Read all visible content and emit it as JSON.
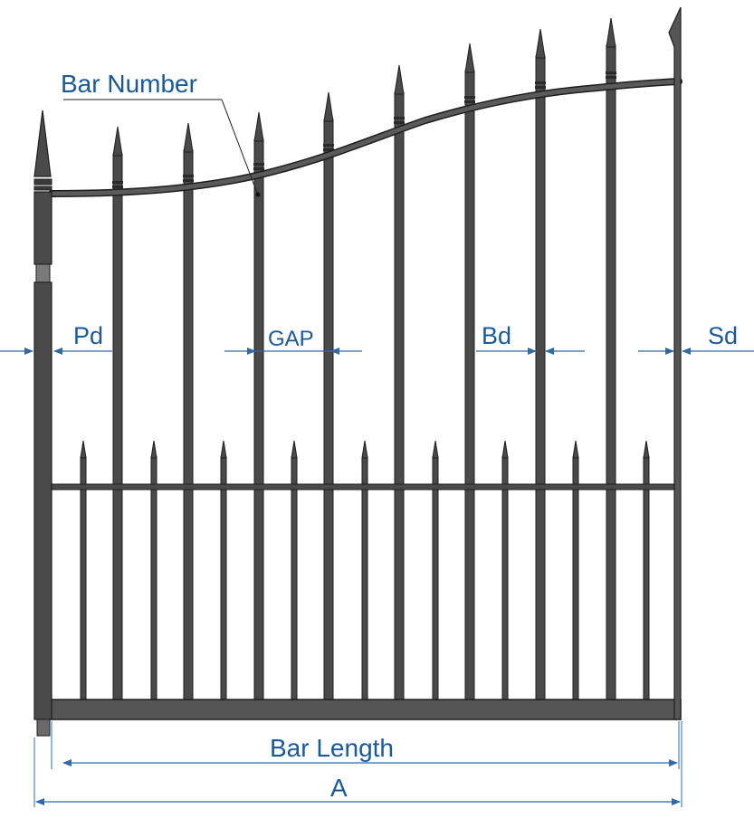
{
  "labels": {
    "bar_number": "Bar Number",
    "pd": "Pd",
    "gap": "GAP",
    "bd": "Bd",
    "sd": "Sd",
    "bar_length": "Bar Length",
    "a": "A"
  },
  "colors": {
    "metal_fill": "#4a4a4a",
    "metal_edge": "#1e1e1e",
    "dimension_line": "#2f6aa8",
    "label_text": "#1a5a9a"
  },
  "components": {
    "tall_bars": 8,
    "short_pickets": 9
  }
}
